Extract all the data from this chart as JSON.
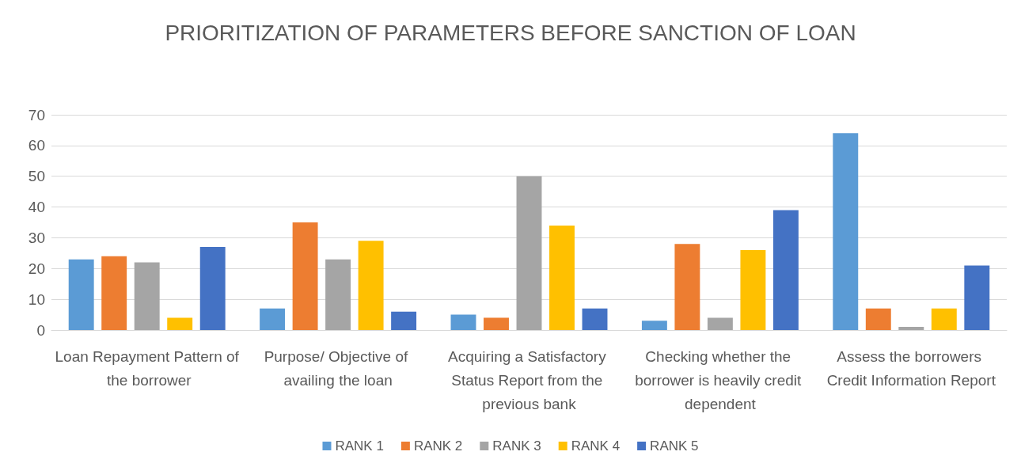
{
  "chart_data": {
    "type": "bar",
    "title": "PRIORITIZATION OF PARAMETERS BEFORE SANCTION OF LOAN",
    "categories": [
      "Loan Repayment Pattern of the borrower",
      "Purpose/ Objective of availing the loan",
      "Acquiring a Satisfactory Status Report from the previous bank",
      "Checking whether the borrower is heavily credit dependent",
      "Assess the borrowers Credit Information Report"
    ],
    "series": [
      {
        "name": "RANK 1",
        "color": "#5b9bd5",
        "values": [
          23,
          7,
          5,
          3,
          64
        ]
      },
      {
        "name": "RANK 2",
        "color": "#ed7d31",
        "values": [
          24,
          35,
          4,
          28,
          7
        ]
      },
      {
        "name": "RANK 3",
        "color": "#a5a5a5",
        "values": [
          22,
          23,
          50,
          4,
          1
        ]
      },
      {
        "name": "RANK 4",
        "color": "#ffc000",
        "values": [
          4,
          29,
          34,
          26,
          7
        ]
      },
      {
        "name": "RANK 5",
        "color": "#4472c4",
        "values": [
          27,
          6,
          7,
          39,
          21
        ]
      }
    ],
    "ylim": [
      0,
      70
    ],
    "yticks": [
      0,
      10,
      20,
      30,
      40,
      50,
      60,
      70
    ],
    "grid": "y",
    "legend": "bottom"
  }
}
